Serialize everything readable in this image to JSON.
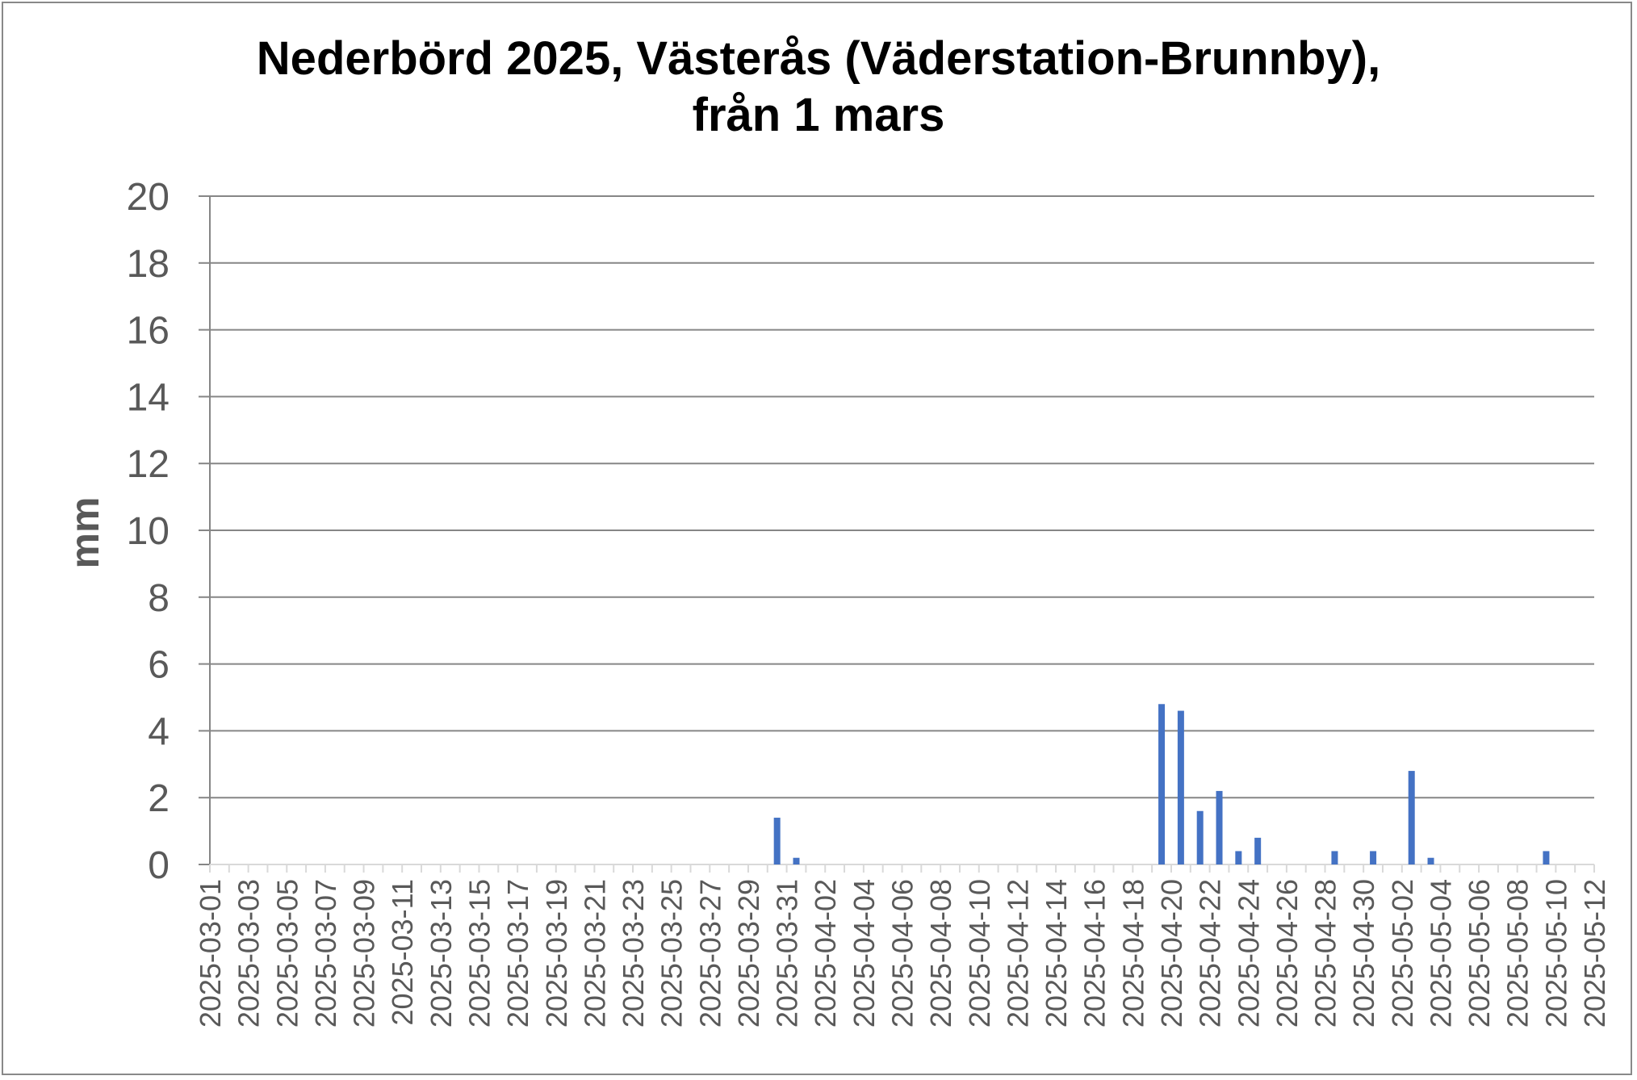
{
  "chart_data": {
    "type": "bar",
    "title": [
      "Nederbörd 2025, Västerås (Väderstation-Brunnby),",
      "från 1 mars"
    ],
    "ylabel": "mm",
    "xlabel": "",
    "ylim": [
      0,
      20
    ],
    "yticks": [
      0,
      2,
      4,
      6,
      8,
      10,
      12,
      14,
      16,
      18,
      20
    ],
    "grid": true,
    "legend": "none",
    "bar_color": "#4472C4",
    "grid_color": "#868686",
    "tick_label_color": "#595959",
    "date_start": "2025-03-01",
    "date_end": "2025-05-12",
    "xtick_labels": [
      "2025-03-01",
      "2025-03-03",
      "2025-03-05",
      "2025-03-07",
      "2025-03-09",
      "2025-03-11",
      "2025-03-13",
      "2025-03-15",
      "2025-03-17",
      "2025-03-19",
      "2025-03-21",
      "2025-03-23",
      "2025-03-25",
      "2025-03-27",
      "2025-03-29",
      "2025-03-31",
      "2025-04-02",
      "2025-04-04",
      "2025-04-06",
      "2025-04-08",
      "2025-04-10",
      "2025-04-12",
      "2025-04-14",
      "2025-04-16",
      "2025-04-18",
      "2025-04-20",
      "2025-04-22",
      "2025-04-24",
      "2025-04-26",
      "2025-04-28",
      "2025-04-30",
      "2025-05-02",
      "2025-05-04",
      "2025-05-06",
      "2025-05-08",
      "2025-05-10",
      "2025-05-12"
    ],
    "series": [
      {
        "points": [
          {
            "x": "2025-03-30",
            "y": 1.4
          },
          {
            "x": "2025-03-31",
            "y": 0.2
          },
          {
            "x": "2025-04-19",
            "y": 4.8
          },
          {
            "x": "2025-04-20",
            "y": 4.6
          },
          {
            "x": "2025-04-21",
            "y": 1.6
          },
          {
            "x": "2025-04-22",
            "y": 2.2
          },
          {
            "x": "2025-04-23",
            "y": 0.4
          },
          {
            "x": "2025-04-24",
            "y": 0.8
          },
          {
            "x": "2025-04-28",
            "y": 0.4
          },
          {
            "x": "2025-04-30",
            "y": 0.4
          },
          {
            "x": "2025-05-02",
            "y": 2.8
          },
          {
            "x": "2025-05-03",
            "y": 0.2
          },
          {
            "x": "2025-05-09",
            "y": 0.4
          }
        ]
      }
    ]
  }
}
